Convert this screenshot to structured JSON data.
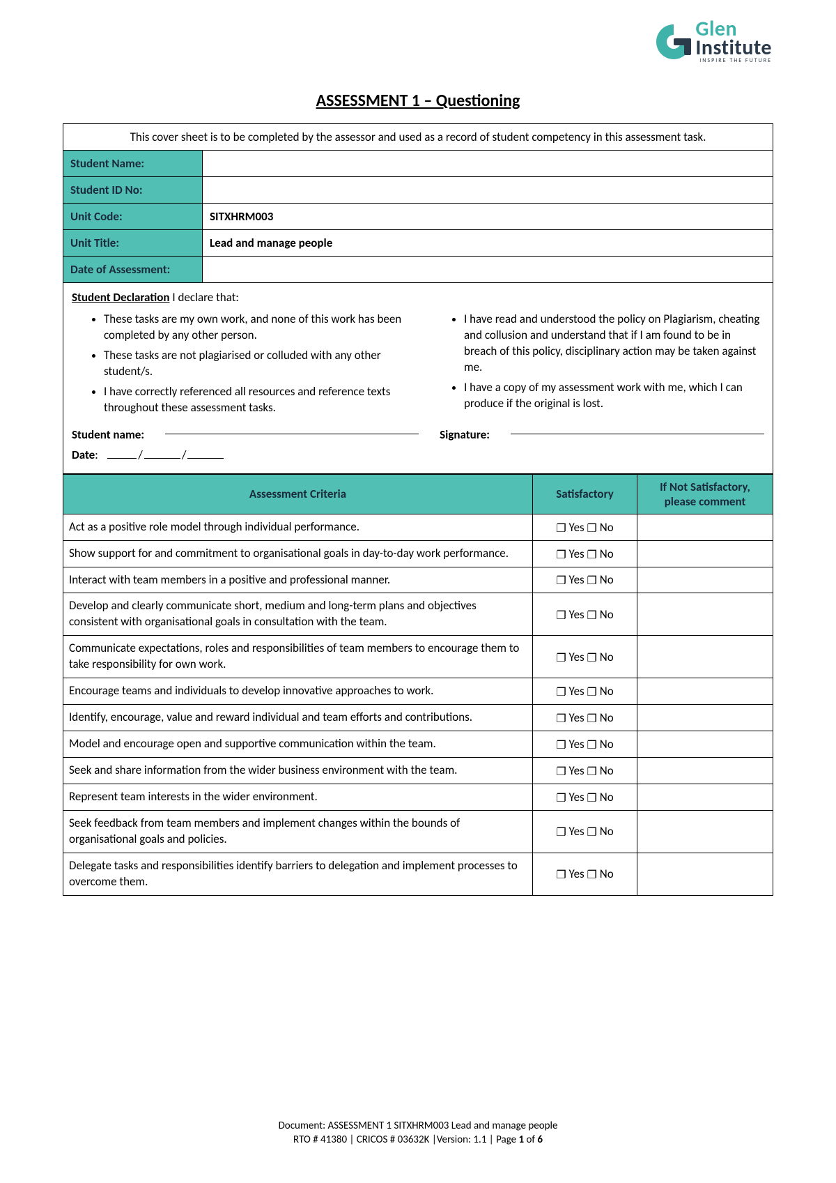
{
  "colors": {
    "brand_teal": "#3fb3aa",
    "brand_dark": "#2b3a4a",
    "header_teal": "#52bfb5",
    "border": "#000000",
    "background": "#ffffff"
  },
  "logo": {
    "brand_line1": "Glen",
    "brand_line2": "Institute",
    "tagline": "INSPIRE THE FUTURE"
  },
  "title": "ASSESSMENT 1 – Questioning",
  "cover": {
    "instruction": "This cover sheet is to be completed by the assessor and used as a record of student competency in this assessment task.",
    "rows": {
      "student_name": {
        "label": "Student Name:",
        "value": ""
      },
      "student_id": {
        "label": "Student ID No:",
        "value": ""
      },
      "unit_code": {
        "label": "Unit Code:",
        "value": "SITXHRM003"
      },
      "unit_title": {
        "label": "Unit Title:",
        "value": "Lead and manage people"
      },
      "date_assess": {
        "label": "Date of Assessment:",
        "value": ""
      }
    }
  },
  "declaration": {
    "heading_bold": "Student Declaration",
    "heading_rest": " I declare that:",
    "left_items": [
      "These tasks are my own work, and none of this work has been completed by any other person.",
      "These tasks are not plagiarised or colluded with any other student/s.",
      "I have correctly referenced all resources and reference texts throughout these assessment tasks."
    ],
    "right_items": [
      "I have read and understood the policy on Plagiarism, cheating and collusion and understand that if I am found to be in breach of this policy, disciplinary action may be taken against me.",
      "I have a copy of my assessment work with me, which I can produce if the original is lost."
    ],
    "name_label": "Student name:",
    "signature_label": "Signature:",
    "date_label": "Date"
  },
  "criteria_table": {
    "headers": {
      "criteria": "Assessment Criteria",
      "satisfactory": "Satisfactory",
      "comment": "If Not Satisfactory, please comment"
    },
    "yes_label": "Yes",
    "no_label": "No",
    "rows": [
      "Act as a positive role model through individual performance.",
      "Show support for and commitment to organisational goals in day-to-day work performance.",
      "Interact with team members in a positive and professional manner.",
      "Develop and clearly communicate short, medium and long-term plans and objectives consistent with organisational goals in consultation with the team.",
      "Communicate expectations, roles and responsibilities of team members to encourage them to take responsibility for own work.",
      "Encourage teams and individuals to develop innovative approaches to work.",
      "Identify, encourage, value and reward individual and team efforts and contributions.",
      "Model and encourage open and supportive communication within the team.",
      "Seek and share information from the wider business environment with the team.",
      "Represent team interests in the wider environment.",
      "Seek feedback from team members and implement changes within the bounds of organisational goals and policies.",
      "Delegate tasks and responsibilities identify barriers to delegation and implement processes to overcome them."
    ]
  },
  "footer": {
    "line1": "Document: ASSESSMENT 1 SITXHRM003 Lead and manage people",
    "line2_prefix": "RTO # 41380 | CRICOS # 03632K |Version: 1.1 | Page ",
    "page_current": "1",
    "page_of": " of ",
    "page_total": "6"
  }
}
